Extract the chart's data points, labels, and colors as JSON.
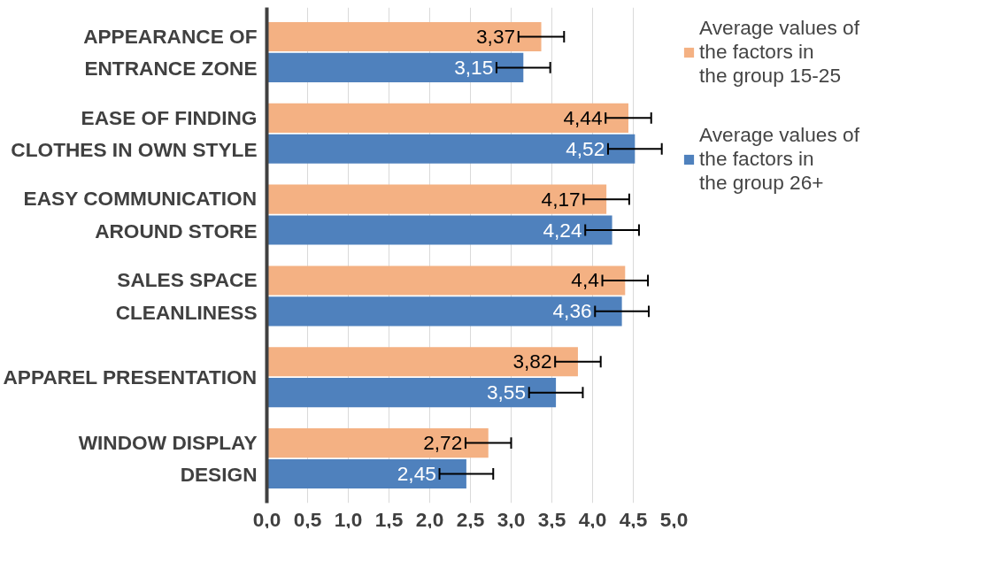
{
  "chart_data": {
    "type": "bar",
    "orientation": "horizontal",
    "categories": [
      "APPEARANCE OF ENTRANCE ZONE",
      "EASE OF FINDING CLOTHES IN OWN STYLE",
      "EASY COMMUNICATION AROUND STORE",
      "SALES SPACE CLEANLINESS",
      "APPAREL PRESENTATION",
      "WINDOW DISPLAY DESIGN"
    ],
    "series": [
      {
        "name": "Average values of the factors in the group 15-25",
        "color": "#f4b183",
        "values": [
          3.37,
          4.44,
          4.17,
          4.4,
          3.82,
          2.72
        ],
        "errors": [
          0.28,
          0.28,
          0.28,
          0.28,
          0.28,
          0.28
        ],
        "value_labels": [
          "3,37",
          "4,44",
          "4,17",
          "4,4",
          "3,82",
          "2,72"
        ]
      },
      {
        "name": "Average values of the factors in the group 26+",
        "color": "#4f81bd",
        "values": [
          3.15,
          4.52,
          4.24,
          4.36,
          3.55,
          2.45
        ],
        "errors": [
          0.33,
          0.33,
          0.33,
          0.33,
          0.33,
          0.33
        ],
        "value_labels": [
          "3,15",
          "4,52",
          "4,24",
          "4,36",
          "3,55",
          "2,45"
        ]
      }
    ],
    "xlim": [
      0,
      5
    ],
    "xticks": [
      {
        "value": 0,
        "label": "0,0"
      },
      {
        "value": 0.5,
        "label": "0,5"
      },
      {
        "value": 1,
        "label": "1,0"
      },
      {
        "value": 1.5,
        "label": "1,5"
      },
      {
        "value": 2,
        "label": "2,0"
      },
      {
        "value": 2.5,
        "label": "2,5"
      },
      {
        "value": 3,
        "label": "3,0"
      },
      {
        "value": 3.5,
        "label": "3,5"
      },
      {
        "value": 4,
        "label": "4,0"
      },
      {
        "value": 4.5,
        "label": "4,5"
      },
      {
        "value": 5,
        "label": "5,0"
      }
    ],
    "grid": "x",
    "legend": "right"
  }
}
